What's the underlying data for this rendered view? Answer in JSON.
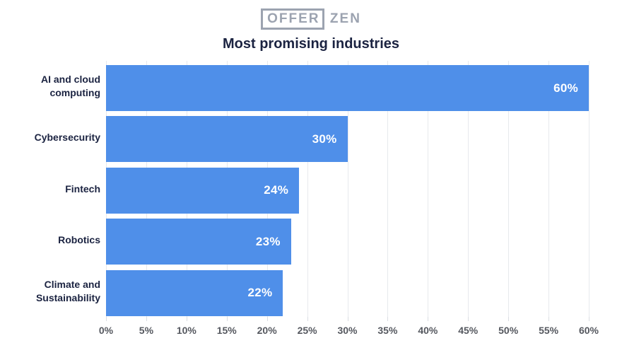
{
  "logo": {
    "boxed": "OFFER",
    "rest": "ZEN",
    "color": "#9ca3b0"
  },
  "chart_data": {
    "type": "bar",
    "orientation": "horizontal",
    "title": "Most promising industries",
    "categories": [
      "AI and cloud computing",
      "Cybersecurity",
      "Fintech",
      "Robotics",
      "Climate and Sustainability"
    ],
    "values": [
      60,
      30,
      24,
      23,
      22
    ],
    "value_labels": [
      "60%",
      "30%",
      "24%",
      "23%",
      "22%"
    ],
    "x_ticks": [
      "0%",
      "5%",
      "10%",
      "15%",
      "20%",
      "25%",
      "30%",
      "35%",
      "40%",
      "45%",
      "50%",
      "55%",
      "60%"
    ],
    "x_tick_values": [
      0,
      5,
      10,
      15,
      20,
      25,
      30,
      35,
      40,
      45,
      50,
      55,
      60
    ],
    "xlim": [
      0,
      60
    ],
    "xlabel": "",
    "ylabel": "",
    "grid": "vertical",
    "legend": "none",
    "bar_color": "#4f8fe9",
    "value_label_color": "#ffffff",
    "title_color": "#1b2341",
    "category_label_color": "#1b2341",
    "tick_label_color": "#55585f"
  }
}
